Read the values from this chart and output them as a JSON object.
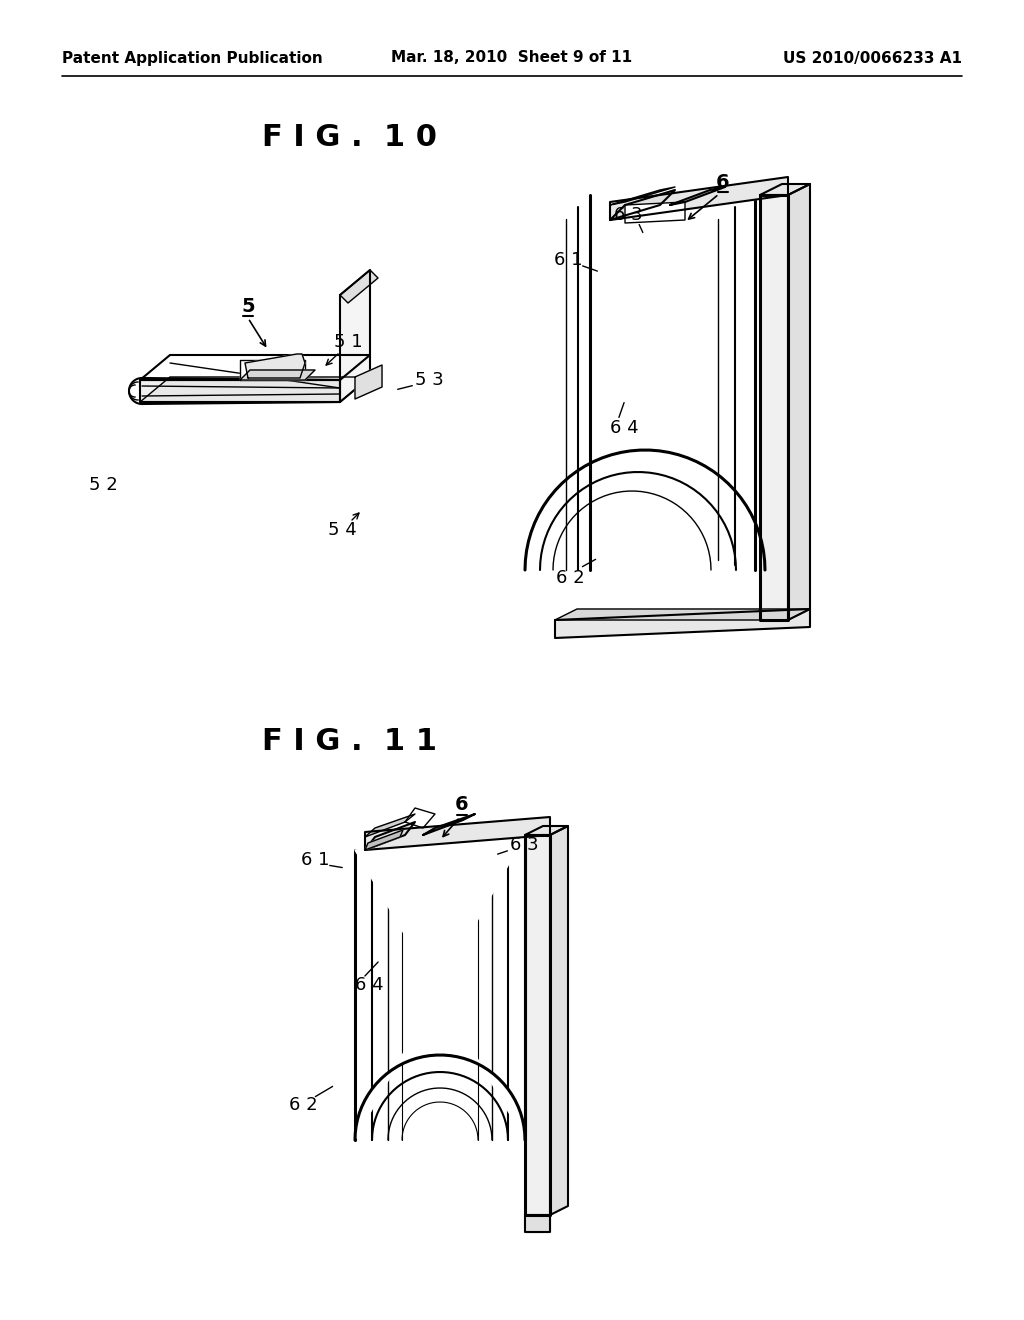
{
  "bg_color": "#ffffff",
  "page_width": 10.24,
  "page_height": 13.2,
  "header_left": "Patent Application Publication",
  "header_center": "Mar. 18, 2010  Sheet 9 of 11",
  "header_right": "US 2010/0066233 A1",
  "fig10_title": "F I G .  1 0",
  "fig11_title": "F I G .  1 1",
  "line_color": "#000000",
  "label_fontsize": 13,
  "title_fontsize": 22,
  "header_fontsize": 11
}
